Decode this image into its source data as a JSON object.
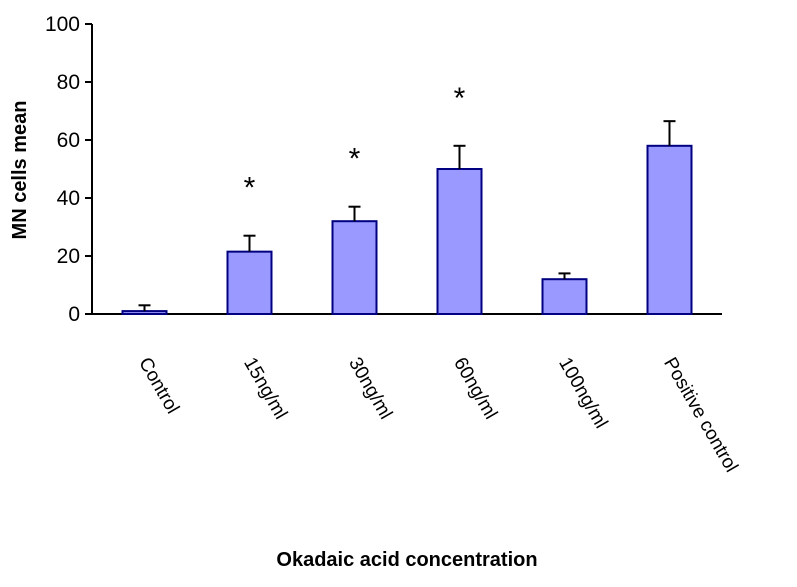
{
  "chart_data": {
    "type": "bar",
    "title": "",
    "xlabel": "Okadaic acid concentration",
    "ylabel": "MN cells mean",
    "ylim": [
      0,
      100
    ],
    "yticks": [
      0,
      20,
      40,
      60,
      80,
      100
    ],
    "grid": false,
    "legend": "none",
    "categories": [
      "Control",
      "15ng/ml",
      "30ng/ml",
      "60ng/ml",
      "100ng/ml",
      "Positive control"
    ],
    "values": [
      1,
      21.5,
      32,
      50,
      12,
      58
    ],
    "error_upper": [
      2,
      5.5,
      5,
      8,
      2,
      8.5
    ],
    "significance": [
      "",
      "*",
      "*",
      "*",
      "",
      ""
    ],
    "bar_color": "#9999ff",
    "bar_stroke": "#000080",
    "axis_color": "#000000"
  }
}
